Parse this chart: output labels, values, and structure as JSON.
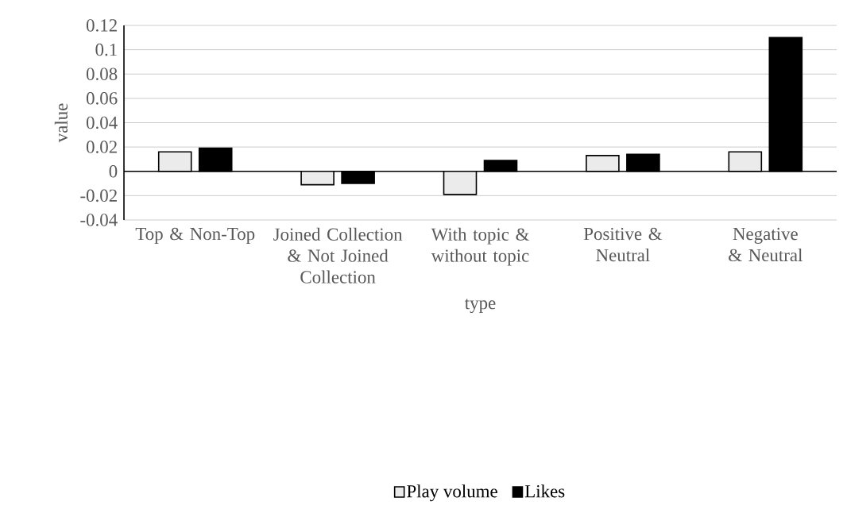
{
  "chart_data": {
    "type": "bar",
    "xlabel": "type",
    "ylabel": "value",
    "categories": [
      "Top & Non-Top",
      "Joined Collection & Not Joined Collection",
      "With topic & without topic",
      "Positive & Neutral",
      "Negative & Neutral"
    ],
    "series": [
      {
        "name": "Play volume",
        "color": "#ebebeb",
        "values": [
          0.016,
          -0.011,
          -0.019,
          0.013,
          0.016
        ]
      },
      {
        "name": "Likes",
        "color": "#000000",
        "values": [
          0.019,
          -0.01,
          0.009,
          0.014,
          0.11
        ]
      }
    ],
    "ylim": [
      -0.04,
      0.12
    ],
    "yticks": [
      -0.04,
      -0.02,
      0,
      0.02,
      0.04,
      0.06,
      0.08,
      0.1,
      0.12
    ],
    "grid": "y",
    "legend": "bottom"
  }
}
